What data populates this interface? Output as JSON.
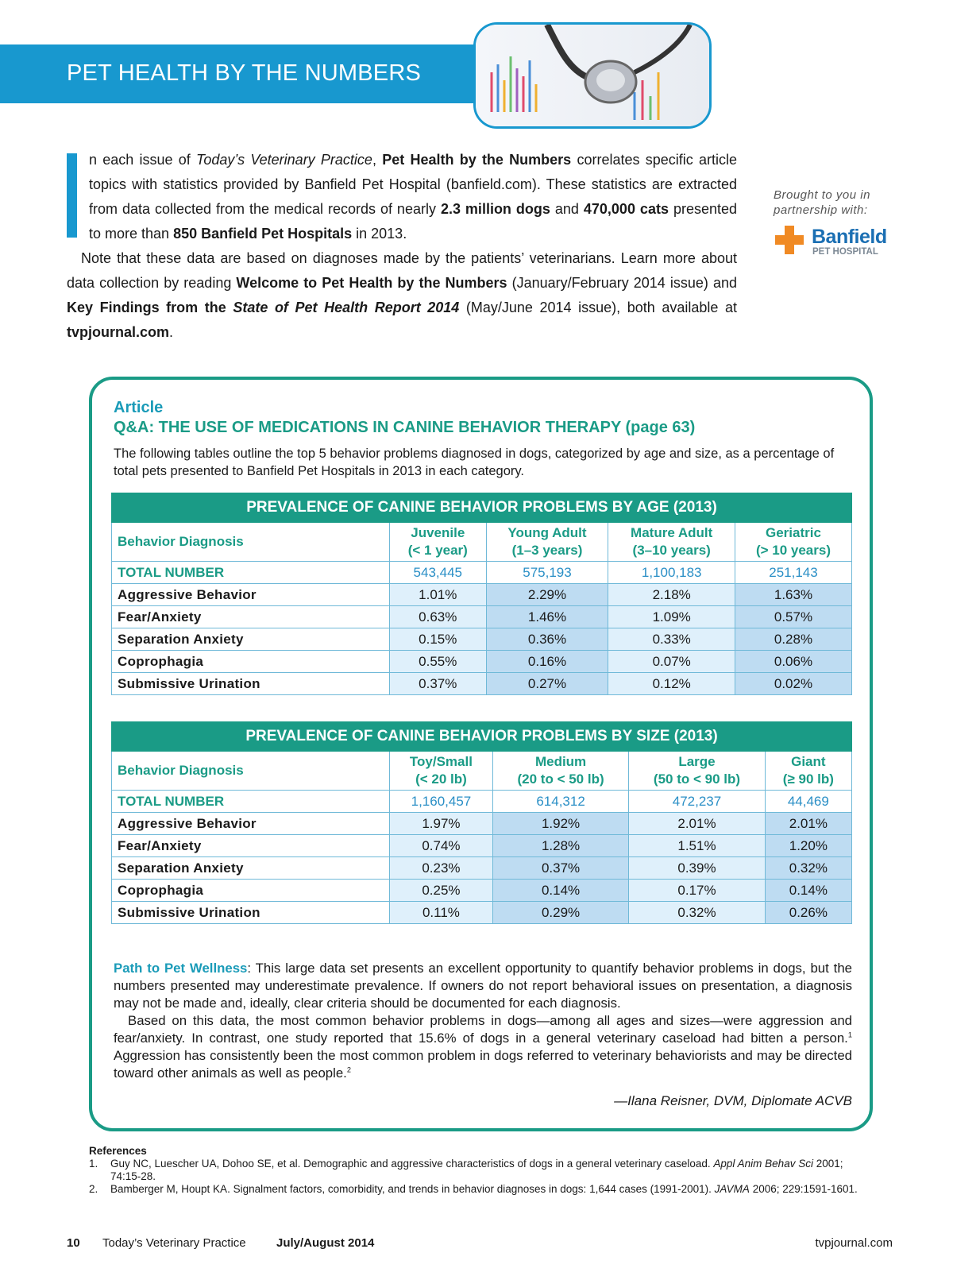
{
  "header": {
    "title": "PET HEALTH BY THE NUMBERS"
  },
  "intro": {
    "drop_cap": "I",
    "paragraphs": [
      [
        "n each issue of ",
        {
          "text": "Today’s Veterinary Practice",
          "style": "italic"
        },
        ", ",
        {
          "text": "Pet Health by the Numbers",
          "style": "bold"
        },
        " correlates specific article topics with statistics provided by Banfield Pet Hospital (banfield.com). These statistics are extracted from data collected from the medical records of nearly ",
        {
          "text": "2.3 million dogs",
          "style": "bold"
        },
        " and ",
        {
          "text": "470,000 cats",
          "style": "bold"
        },
        " presented to more than ",
        {
          "text": "850 Banfield Pet Hospitals",
          "style": "bold"
        },
        " in 2013."
      ],
      [
        "Note that these data are based on diagnoses made by the patients’ veterinarians. Learn more about data collection by reading ",
        {
          "text": "Welcome to Pet Health by the Numbers",
          "style": "bold"
        },
        " (January/February 2014 issue) and ",
        {
          "text": "Key Findings from the ",
          "style": "bold"
        },
        {
          "text": "State of Pet Health Report 2014",
          "style": "bold-italic"
        },
        " (May/June 2014 issue), both available at ",
        {
          "text": "tvpjournal.com",
          "style": "bold"
        },
        "."
      ]
    ]
  },
  "sidebar": {
    "text": "Brought to you in partnership with:",
    "logo_name": "Banfield",
    "logo_sub": "PET HOSPITAL"
  },
  "article": {
    "label": "Article",
    "title": "Q&A: THE USE OF MEDICATIONS IN CANINE BEHAVIOR THERAPY (page 63)",
    "description": "The following tables outline the top 5 behavior problems diagnosed in dogs, categorized by age and size, as a percentage of total pets presented to Banfield Pet Hospitals in 2013 in each category."
  },
  "tables": [
    {
      "title": "PREVALENCE OF CANINE BEHAVIOR PROBLEMS BY AGE (2013)",
      "row_header": "Behavior Diagnosis",
      "columns": [
        [
          "Juvenile",
          "(< 1 year)"
        ],
        [
          "Young Adult",
          "(1–3 years)"
        ],
        [
          "Mature Adult",
          "(3–10 years)"
        ],
        [
          "Geriatric",
          "(> 10 years)"
        ]
      ],
      "total": {
        "label": "TOTAL NUMBER",
        "values": [
          "543,445",
          "575,193",
          "1,100,183",
          "251,143"
        ]
      },
      "rows": [
        {
          "label": "Aggressive Behavior",
          "values": [
            "1.01%",
            "2.29%",
            "2.18%",
            "1.63%"
          ]
        },
        {
          "label": "Fear/Anxiety",
          "values": [
            "0.63%",
            "1.46%",
            "1.09%",
            "0.57%"
          ]
        },
        {
          "label": "Separation Anxiety",
          "values": [
            "0.15%",
            "0.36%",
            "0.33%",
            "0.28%"
          ]
        },
        {
          "label": "Coprophagia",
          "values": [
            "0.55%",
            "0.16%",
            "0.07%",
            "0.06%"
          ]
        },
        {
          "label": "Submissive Urination",
          "values": [
            "0.37%",
            "0.27%",
            "0.12%",
            "0.02%"
          ]
        }
      ]
    },
    {
      "title": "PREVALENCE OF CANINE BEHAVIOR PROBLEMS BY SIZE (2013)",
      "row_header": "Behavior Diagnosis",
      "columns": [
        [
          "Toy/Small",
          "(< 20 lb)"
        ],
        [
          "Medium",
          "(20 to < 50 lb)"
        ],
        [
          "Large",
          "(50 to < 90 lb)"
        ],
        [
          "Giant",
          "(≥ 90 lb)"
        ]
      ],
      "total": {
        "label": "TOTAL NUMBER",
        "values": [
          "1,160,457",
          "614,312",
          "472,237",
          "44,469"
        ]
      },
      "rows": [
        {
          "label": "Aggressive Behavior",
          "values": [
            "1.97%",
            "1.92%",
            "2.01%",
            "2.01%"
          ]
        },
        {
          "label": "Fear/Anxiety",
          "values": [
            "0.74%",
            "1.28%",
            "1.51%",
            "1.20%"
          ]
        },
        {
          "label": "Separation Anxiety",
          "values": [
            "0.23%",
            "0.37%",
            "0.39%",
            "0.32%"
          ]
        },
        {
          "label": "Coprophagia",
          "values": [
            "0.25%",
            "0.14%",
            "0.17%",
            "0.14%"
          ]
        },
        {
          "label": "Submissive Urination",
          "values": [
            "0.11%",
            "0.29%",
            "0.32%",
            "0.26%"
          ]
        }
      ]
    }
  ],
  "wellness": {
    "paragraphs": [
      [
        {
          "text": "Path to Pet Wellness",
          "style": "teal"
        },
        ": This large data set presents an excellent opportunity to quantify behavior problems in dogs, but the numbers presented may underestimate prevalence. If owners do not report behavioral issues on presentation, a diagnosis may not be made and, ideally, clear criteria should be documented for each diagnosis."
      ],
      [
        "Based on this data, the most common behavior problems in dogs—among all ages and sizes—were aggression and fear/anxiety. In contrast, one study reported that 15.6% of dogs in a general veterinary caseload had bitten a person.",
        {
          "text": "1",
          "style": "sup"
        },
        " Aggression has consistently been the most common problem in dogs referred to veterinary behaviorists and may be directed toward other animals as well as people.",
        {
          "text": "2",
          "style": "sup"
        }
      ]
    ],
    "signature": "—Ilana Reisner, DVM, Diplomate ACVB"
  },
  "references": {
    "heading": "References",
    "items": [
      {
        "number": "1.",
        "runs": [
          "Guy NC, Luescher UA, Dohoo SE, et al. Demographic and aggressive characteristics of dogs in a general veterinary caseload. ",
          {
            "text": "Appl Anim Behav Sci",
            "style": "italic"
          },
          " 2001; 74:15-28."
        ]
      },
      {
        "number": "2.",
        "runs": [
          "Bamberger M, Houpt KA. Signalment factors, comorbidity, and trends in behavior diagnoses in dogs: 1,644 cases (1991-2001). ",
          {
            "text": "JAVMA",
            "style": "italic"
          },
          " 2006; 229:1591-1601."
        ]
      }
    ]
  },
  "footer": {
    "page": "10",
    "journal": "Today’s Veterinary Practice",
    "issue": "July/August 2014",
    "url": "tvpjournal.com"
  }
}
